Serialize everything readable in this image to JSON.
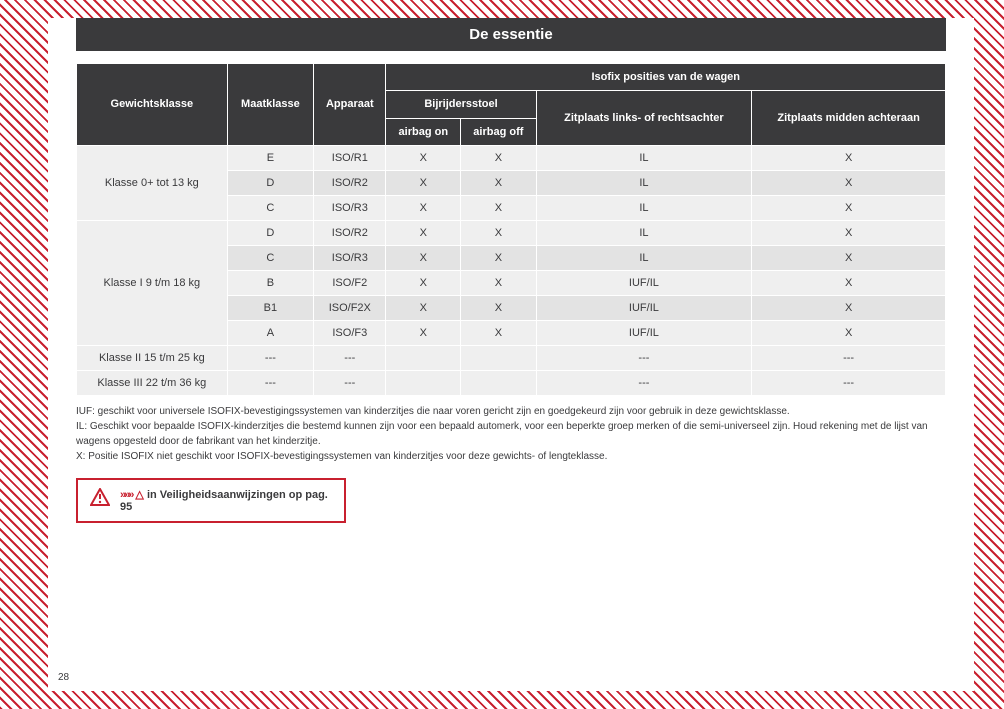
{
  "title": "De essentie",
  "page_number": "28",
  "table": {
    "header": {
      "col1": "Gewichtsklasse",
      "col2": "Maatklasse",
      "col3": "Apparaat",
      "group": "Isofix posities van de wagen",
      "sub1": "Bijrijdersstoel",
      "sub1a": "airbag on",
      "sub1b": "airbag off",
      "sub2": "Zitplaats links- of rechtsachter",
      "sub3": "Zitplaats midden achteraan"
    },
    "groups": [
      {
        "label": "Klasse 0+ tot 13 kg",
        "rows": [
          {
            "maat": "E",
            "app": "ISO/R1",
            "on": "X",
            "off": "X",
            "rear": "IL",
            "mid": "X"
          },
          {
            "maat": "D",
            "app": "ISO/R2",
            "on": "X",
            "off": "X",
            "rear": "IL",
            "mid": "X"
          },
          {
            "maat": "C",
            "app": "ISO/R3",
            "on": "X",
            "off": "X",
            "rear": "IL",
            "mid": "X"
          }
        ]
      },
      {
        "label": "Klasse I 9 t/m 18 kg",
        "rows": [
          {
            "maat": "D",
            "app": "ISO/R2",
            "on": "X",
            "off": "X",
            "rear": "IL",
            "mid": "X"
          },
          {
            "maat": "C",
            "app": "ISO/R3",
            "on": "X",
            "off": "X",
            "rear": "IL",
            "mid": "X"
          },
          {
            "maat": "B",
            "app": "ISO/F2",
            "on": "X",
            "off": "X",
            "rear": "IUF/IL",
            "mid": "X"
          },
          {
            "maat": "B1",
            "app": "ISO/F2X",
            "on": "X",
            "off": "X",
            "rear": "IUF/IL",
            "mid": "X"
          },
          {
            "maat": "A",
            "app": "ISO/F3",
            "on": "X",
            "off": "X",
            "rear": "IUF/IL",
            "mid": "X"
          }
        ]
      },
      {
        "label": "Klasse II 15 t/m 25 kg",
        "rows": [
          {
            "maat": "---",
            "app": "---",
            "on": "",
            "off": "",
            "rear": "---",
            "mid": "---"
          }
        ]
      },
      {
        "label": "Klasse III 22 t/m 36 kg",
        "rows": [
          {
            "maat": "---",
            "app": "---",
            "on": "",
            "off": "",
            "rear": "---",
            "mid": "---"
          }
        ]
      }
    ]
  },
  "legend": {
    "l1": "IUF: geschikt voor universele ISOFIX-bevestigingssystemen van kinderzitjes die naar voren gericht zijn en goedgekeurd zijn voor gebruik in deze gewichtsklasse.",
    "l2": "IL: Geschikt voor bepaalde ISOFIX-kinderzitjes die bestemd kunnen zijn voor een bepaald automerk, voor een beperkte groep merken of die semi-universeel zijn. Houd rekening met de lijst van wagens opgesteld door de fabrikant van het kinderzitje.",
    "l3": "X: Positie ISOFIX niet geschikt voor ISOFIX-bevestigingssystemen van kinderzitjes voor deze gewichts- of lengteklasse."
  },
  "warning": {
    "prefix": "»»»",
    "text": " in Veiligheidsaanwijzingen op pag. 95"
  },
  "colors": {
    "accent": "#c8202f",
    "header_bg": "#3a3a3c",
    "row_a": "#efefef",
    "row_b": "#e3e3e3"
  }
}
